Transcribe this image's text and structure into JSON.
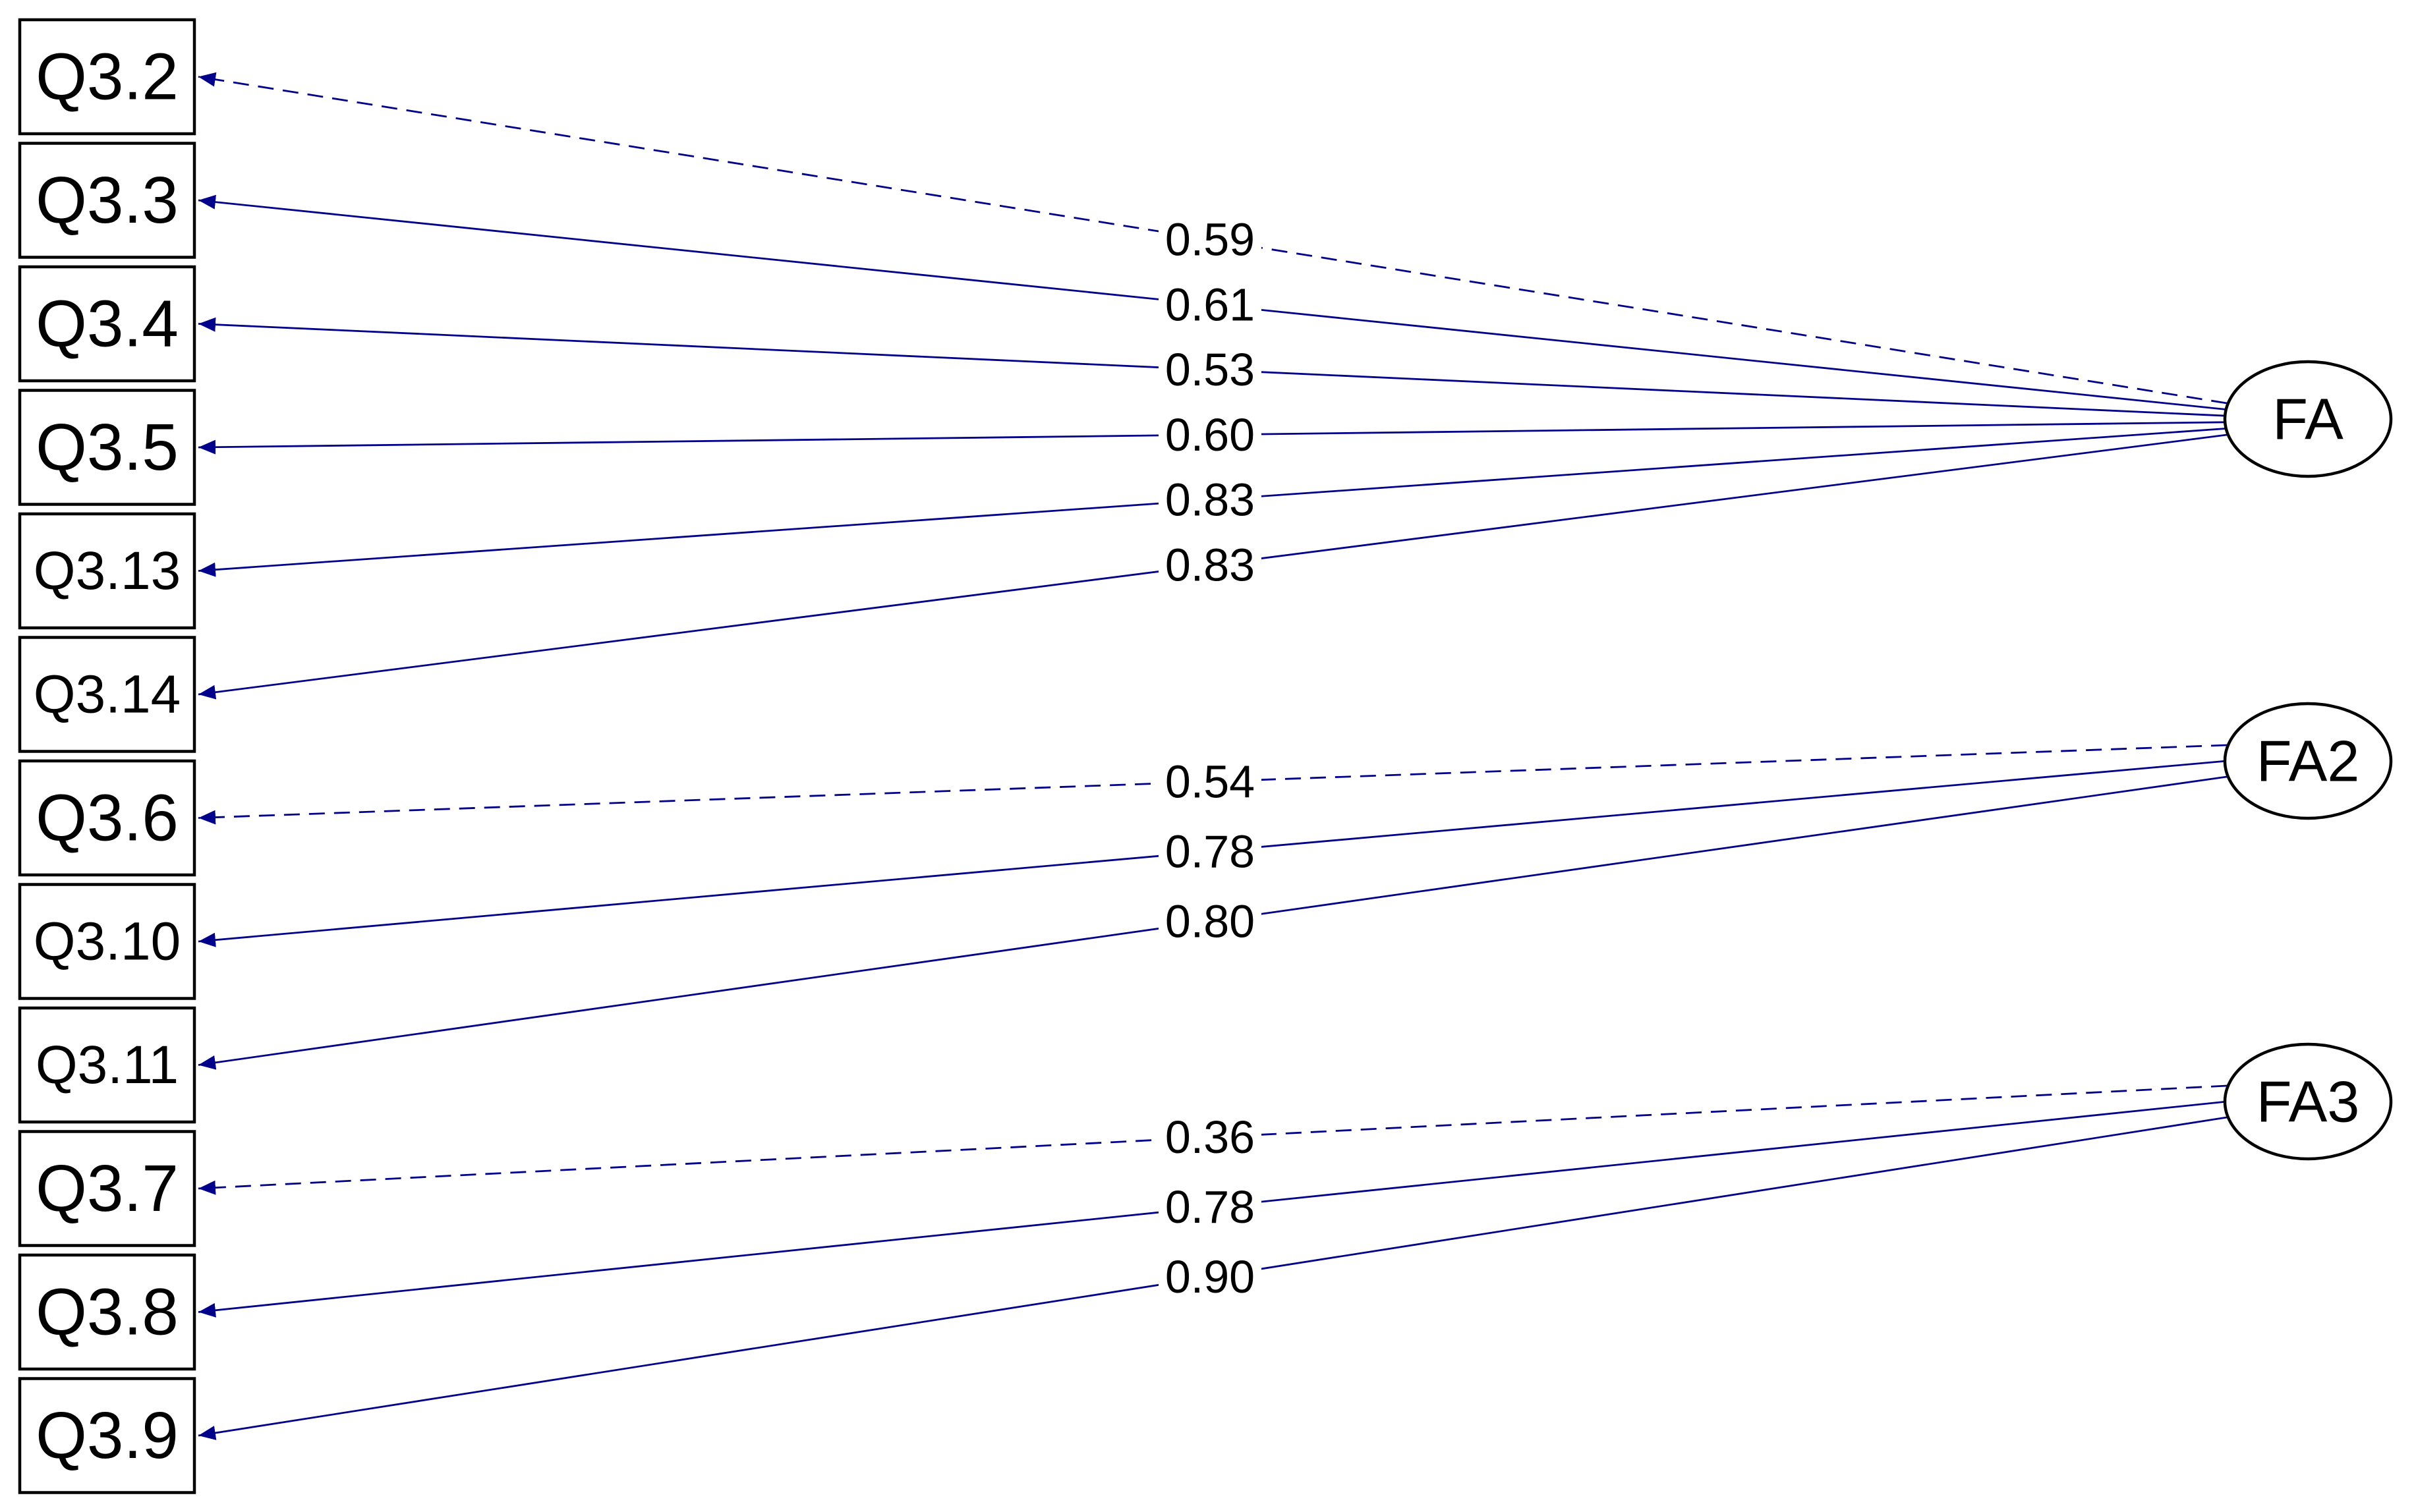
{
  "style": {
    "path_color": "#00008B",
    "box_color": "#000000",
    "background": "#FFFFFF"
  },
  "factors": [
    {
      "id": "FA",
      "label": "FA"
    },
    {
      "id": "FA2",
      "label": "FA2"
    },
    {
      "id": "FA3",
      "label": "FA3"
    }
  ],
  "indicators": [
    {
      "id": "Q3.2",
      "label": "Q3.2"
    },
    {
      "id": "Q3.3",
      "label": "Q3.3"
    },
    {
      "id": "Q3.4",
      "label": "Q3.4"
    },
    {
      "id": "Q3.5",
      "label": "Q3.5"
    },
    {
      "id": "Q3.13",
      "label": "Q3.13"
    },
    {
      "id": "Q3.14",
      "label": "Q3.14"
    },
    {
      "id": "Q3.6",
      "label": "Q3.6"
    },
    {
      "id": "Q3.10",
      "label": "Q3.10"
    },
    {
      "id": "Q3.11",
      "label": "Q3.11"
    },
    {
      "id": "Q3.7",
      "label": "Q3.7"
    },
    {
      "id": "Q3.8",
      "label": "Q3.8"
    },
    {
      "id": "Q3.9",
      "label": "Q3.9"
    }
  ],
  "loadings": [
    {
      "factor": "FA",
      "indicator": "Q3.2",
      "label": "0.59",
      "fixed": true
    },
    {
      "factor": "FA",
      "indicator": "Q3.3",
      "label": "0.61",
      "fixed": false
    },
    {
      "factor": "FA",
      "indicator": "Q3.4",
      "label": "0.53",
      "fixed": false
    },
    {
      "factor": "FA",
      "indicator": "Q3.5",
      "label": "0.60",
      "fixed": false
    },
    {
      "factor": "FA",
      "indicator": "Q3.13",
      "label": "0.83",
      "fixed": false
    },
    {
      "factor": "FA",
      "indicator": "Q3.14",
      "label": "0.83",
      "fixed": false
    },
    {
      "factor": "FA2",
      "indicator": "Q3.6",
      "label": "0.54",
      "fixed": true
    },
    {
      "factor": "FA2",
      "indicator": "Q3.10",
      "label": "0.78",
      "fixed": false
    },
    {
      "factor": "FA2",
      "indicator": "Q3.11",
      "label": "0.80",
      "fixed": false
    },
    {
      "factor": "FA3",
      "indicator": "Q3.7",
      "label": "0.36",
      "fixed": true
    },
    {
      "factor": "FA3",
      "indicator": "Q3.8",
      "label": "0.78",
      "fixed": false
    },
    {
      "factor": "FA3",
      "indicator": "Q3.9",
      "label": "0.90",
      "fixed": false
    }
  ]
}
